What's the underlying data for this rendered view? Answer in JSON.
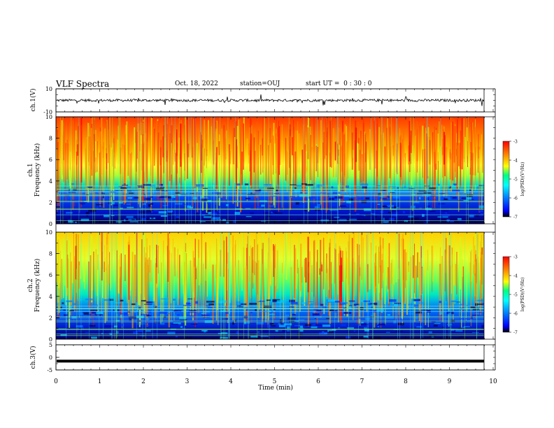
{
  "header": {
    "title": "VLF Spectra",
    "date": "Oct. 18, 2022",
    "station": "station=OUJ",
    "start": "start UT =  0 : 30 : 0"
  },
  "chart_data": [
    {
      "type": "line",
      "title": "",
      "ylabel": "ch.1(V)",
      "ylim": [
        -10,
        10
      ],
      "yticks": [
        10,
        -10
      ],
      "xlim": [
        0,
        10
      ],
      "description_values": {
        "baseline": 0,
        "range": [
          -10,
          10
        ]
      }
    },
    {
      "type": "heatmap",
      "ylabel": "ch.1",
      "ylabel2": "Frequency (kHz)",
      "ylim": [
        0,
        10
      ],
      "yticks": [
        0,
        2,
        4,
        6,
        8,
        10
      ],
      "xlim": [
        0,
        10
      ],
      "colorbar": {
        "label": "log(PSD)(V²/Hz)",
        "range": [
          -7,
          -3
        ],
        "ticks": [
          -3,
          -4,
          -5,
          -6,
          -7
        ]
      }
    },
    {
      "type": "heatmap",
      "ylabel": "ch.2",
      "ylabel2": "Frequency (kHz)",
      "ylim": [
        0,
        10
      ],
      "yticks": [
        0,
        2,
        4,
        6,
        8,
        10
      ],
      "xlim": [
        0,
        10
      ],
      "colorbar": {
        "label": "log(PSD)(V²/Hz)",
        "range": [
          -7,
          -3
        ],
        "ticks": [
          -3,
          -4,
          -5,
          -6,
          -7
        ]
      }
    },
    {
      "type": "line",
      "ylabel": "ch.3(V)",
      "ylim": [
        -5,
        5
      ],
      "yticks": [
        5,
        0,
        -5
      ],
      "xlim": [
        0,
        10
      ],
      "values_constant": -1.5
    }
  ],
  "xaxis": {
    "label": "Time (min)",
    "ticks": [
      0,
      1,
      2,
      3,
      4,
      5,
      6,
      7,
      8,
      9,
      10
    ]
  },
  "colors": {
    "spectrogram_scale": [
      "#000000",
      "#0000ff",
      "#00a0ff",
      "#00ffff",
      "#00ff80",
      "#80ff00",
      "#ffff00",
      "#ff8000",
      "#ff0000"
    ]
  }
}
